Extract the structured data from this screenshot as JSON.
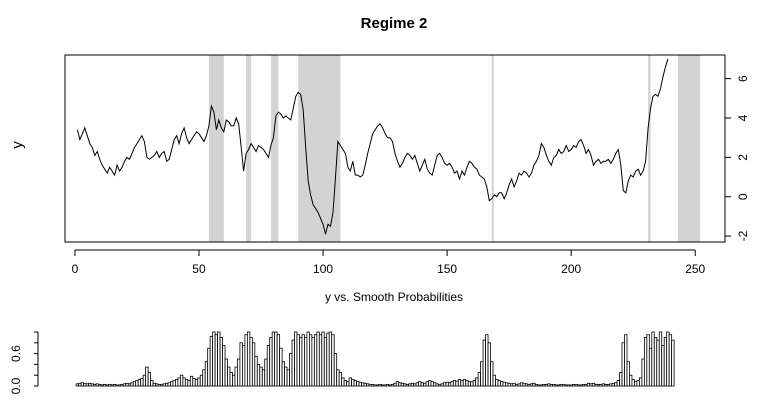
{
  "chart_data": [
    {
      "type": "line",
      "title": "Regime 2",
      "ylabel": "y",
      "xlabel": "",
      "xlim": [
        -4,
        262
      ],
      "ylim": [
        -2.3,
        7.2
      ],
      "xticks": [
        0,
        50,
        100,
        150,
        200,
        250
      ],
      "yticks": [
        -2,
        0,
        2,
        4,
        6
      ],
      "y_axis_side": "right",
      "shaded_regions": [
        [
          54,
          60
        ],
        [
          69,
          71
        ],
        [
          79,
          82
        ],
        [
          90,
          107
        ],
        [
          168,
          168.7
        ],
        [
          231,
          232
        ],
        [
          243,
          252
        ]
      ],
      "series_x_start": 1,
      "series": [
        {
          "values": [
            3.4,
            2.9,
            3.2,
            3.5,
            3.1,
            2.7,
            2.5,
            2.1,
            2.3,
            1.9,
            1.6,
            1.4,
            1.2,
            1.5,
            1.3,
            1.1,
            1.6,
            1.3,
            1.5,
            1.8,
            2.0,
            1.9,
            2.2,
            2.5,
            2.7,
            2.9,
            3.1,
            2.8,
            2.0,
            1.9,
            2.0,
            2.1,
            2.3,
            2.0,
            2.2,
            2.3,
            1.8,
            1.9,
            2.4,
            2.9,
            3.1,
            2.7,
            3.2,
            3.5,
            3.0,
            2.7,
            2.9,
            3.1,
            3.3,
            3.2,
            3.0,
            2.8,
            3.1,
            3.6,
            4.6,
            4.3,
            3.4,
            3.9,
            3.5,
            3.3,
            3.9,
            3.8,
            3.6,
            3.6,
            4.0,
            3.7,
            2.5,
            1.3,
            2.2,
            2.4,
            2.7,
            2.5,
            2.3,
            2.6,
            2.5,
            2.4,
            2.2,
            2.0,
            2.6,
            3.0,
            4.1,
            4.3,
            4.2,
            4.0,
            4.1,
            4.0,
            3.9,
            4.5,
            5.1,
            5.3,
            5.2,
            4.4,
            2.5,
            0.8,
            0.1,
            -0.4,
            -0.6,
            -0.8,
            -1.1,
            -1.4,
            -1.9,
            -1.4,
            -1.5,
            -0.8,
            1.0,
            2.8,
            2.6,
            2.4,
            2.2,
            1.5,
            1.3,
            1.8,
            1.1,
            1.1,
            1.0,
            1.1,
            1.6,
            2.2,
            2.7,
            3.2,
            3.4,
            3.6,
            3.7,
            3.5,
            3.2,
            3.0,
            3.0,
            2.8,
            2.2,
            1.8,
            1.5,
            1.7,
            2.0,
            2.2,
            2.1,
            1.9,
            2.1,
            1.7,
            1.3,
            1.6,
            1.9,
            1.4,
            1.2,
            1.1,
            1.6,
            2.1,
            2.2,
            2.0,
            1.7,
            1.6,
            1.7,
            1.5,
            1.2,
            1.3,
            0.9,
            1.3,
            1.1,
            1.5,
            1.8,
            1.7,
            1.5,
            1.4,
            1.1,
            1.0,
            0.9,
            0.5,
            -0.2,
            -0.1,
            0.1,
            0.0,
            0.2,
            0.2,
            -0.1,
            0.2,
            0.6,
            0.9,
            0.5,
            0.8,
            1.2,
            1.1,
            1.3,
            1.2,
            1.0,
            1.2,
            1.6,
            1.8,
            2.1,
            2.7,
            2.5,
            2.1,
            1.8,
            1.6,
            2.0,
            2.1,
            2.4,
            2.2,
            2.3,
            2.6,
            2.3,
            2.4,
            2.6,
            2.5,
            2.8,
            2.9,
            2.6,
            2.2,
            2.4,
            2.1,
            1.6,
            1.8,
            1.9,
            1.7,
            1.8,
            1.8,
            1.9,
            1.7,
            1.9,
            2.2,
            2.4,
            1.6,
            0.3,
            0.2,
            0.8,
            1.1,
            1.0,
            1.3,
            1.4,
            1.1,
            1.3,
            1.8,
            3.5,
            4.5,
            5.1,
            5.2,
            5.1,
            5.5,
            6.1,
            6.6,
            7.0
          ]
        }
      ]
    },
    {
      "type": "bar",
      "title": "y vs. Smooth Probabilities",
      "xlim": [
        -4,
        262
      ],
      "ylim": [
        0,
        1
      ],
      "yticks": [
        0.0,
        0.6
      ],
      "ytick_labels": [
        "0.0",
        "0.6"
      ],
      "y_axis_side": "left",
      "series_x_start": 1,
      "series": [
        {
          "values": [
            0.04,
            0.05,
            0.06,
            0.05,
            0.04,
            0.05,
            0.04,
            0.03,
            0.04,
            0.03,
            0.02,
            0.03,
            0.02,
            0.03,
            0.02,
            0.03,
            0.02,
            0.02,
            0.03,
            0.04,
            0.05,
            0.04,
            0.06,
            0.08,
            0.1,
            0.12,
            0.14,
            0.2,
            0.35,
            0.25,
            0.1,
            0.05,
            0.04,
            0.03,
            0.03,
            0.04,
            0.05,
            0.06,
            0.08,
            0.1,
            0.12,
            0.15,
            0.2,
            0.15,
            0.12,
            0.1,
            0.18,
            0.14,
            0.12,
            0.15,
            0.2,
            0.3,
            0.45,
            0.7,
            0.92,
            1.0,
            0.95,
            1.0,
            0.9,
            0.75,
            0.5,
            0.35,
            0.25,
            0.2,
            0.35,
            0.5,
            0.8,
            0.75,
            0.95,
            1.0,
            0.9,
            0.8,
            0.55,
            0.4,
            0.35,
            0.3,
            0.5,
            0.75,
            0.9,
            1.0,
            1.0,
            0.95,
            0.7,
            0.45,
            0.35,
            0.3,
            0.6,
            0.85,
            1.0,
            0.95,
            0.9,
            0.95,
            0.9,
            1.0,
            0.95,
            0.9,
            0.95,
            1.0,
            0.95,
            1.0,
            0.9,
            0.98,
            1.0,
            0.95,
            0.6,
            0.3,
            0.25,
            0.15,
            0.1,
            0.08,
            0.15,
            0.12,
            0.1,
            0.08,
            0.07,
            0.06,
            0.05,
            0.04,
            0.03,
            0.03,
            0.02,
            0.02,
            0.03,
            0.02,
            0.02,
            0.03,
            0.02,
            0.03,
            0.05,
            0.08,
            0.06,
            0.05,
            0.04,
            0.03,
            0.04,
            0.05,
            0.04,
            0.06,
            0.08,
            0.06,
            0.05,
            0.08,
            0.1,
            0.08,
            0.06,
            0.04,
            0.03,
            0.04,
            0.06,
            0.07,
            0.06,
            0.08,
            0.1,
            0.09,
            0.12,
            0.1,
            0.12,
            0.1,
            0.08,
            0.08,
            0.1,
            0.15,
            0.25,
            0.45,
            0.85,
            0.95,
            0.8,
            0.45,
            0.2,
            0.12,
            0.1,
            0.08,
            0.07,
            0.06,
            0.05,
            0.04,
            0.05,
            0.03,
            0.04,
            0.06,
            0.05,
            0.04,
            0.03,
            0.04,
            0.05,
            0.03,
            0.02,
            0.02,
            0.03,
            0.03,
            0.04,
            0.03,
            0.03,
            0.02,
            0.02,
            0.03,
            0.03,
            0.02,
            0.02,
            0.02,
            0.03,
            0.03,
            0.02,
            0.02,
            0.03,
            0.03,
            0.05,
            0.04,
            0.05,
            0.03,
            0.03,
            0.03,
            0.04,
            0.03,
            0.03,
            0.04,
            0.05,
            0.06,
            0.1,
            0.25,
            0.8,
            0.95,
            0.45,
            0.2,
            0.12,
            0.08,
            0.1,
            0.15,
            0.5,
            0.9,
            0.95,
            0.7,
            1.0,
            0.9,
            0.85,
            1.0,
            0.75,
            0.9,
            1.0,
            0.95,
            0.85
          ]
        }
      ]
    }
  ]
}
